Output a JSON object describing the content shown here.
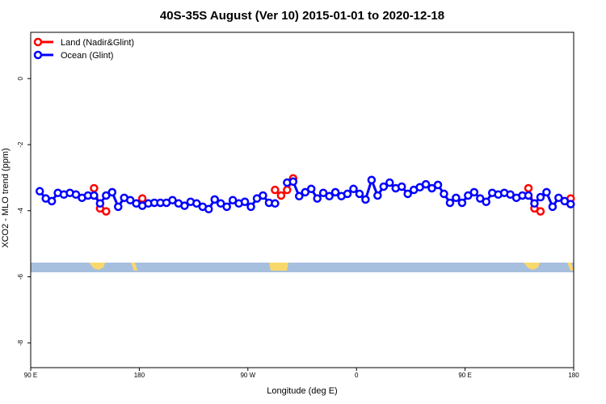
{
  "chart_data": {
    "type": "line",
    "title": "40S-35S August (Ver 10)   2015-01-01 to 2020-12-18",
    "xlabel": "Longitude (deg E)",
    "ylabel": "XCO2 - MLO trend (ppm)",
    "xlim": [
      90,
      540
    ],
    "ylim": [
      -8.75,
      1.4
    ],
    "xticks": [
      {
        "value": 90,
        "label": "90 E"
      },
      {
        "value": 180,
        "label": "180"
      },
      {
        "value": 270,
        "label": "90 W"
      },
      {
        "value": 360,
        "label": "0"
      },
      {
        "value": 450,
        "label": "90 E"
      },
      {
        "value": 540,
        "label": "180"
      }
    ],
    "yticks": [
      0,
      -2,
      -4,
      -6,
      -8
    ],
    "legend": "top-left",
    "x": [
      97.5,
      102.5,
      107.5,
      112.5,
      117.5,
      122.5,
      127.5,
      132.5,
      137.5,
      142.5,
      147.5,
      152.5,
      157.5,
      162.5,
      167.5,
      172.5,
      177.5,
      182.5,
      187.5,
      192.5,
      197.5,
      202.5,
      207.5,
      212.5,
      217.5,
      222.5,
      227.5,
      232.5,
      237.5,
      242.5,
      247.5,
      252.5,
      257.5,
      262.5,
      267.5,
      272.5,
      277.5,
      282.5,
      287.5,
      292.5,
      297.5,
      302.5,
      307.5,
      312.5,
      317.5,
      322.5,
      327.5,
      332.5,
      337.5,
      342.5,
      347.5,
      352.5,
      357.5,
      362.5,
      367.5,
      372.5,
      377.5,
      382.5,
      387.5,
      392.5,
      397.5,
      402.5,
      407.5,
      412.5,
      417.5,
      422.5,
      427.5,
      432.5,
      437.5,
      442.5,
      447.5,
      452.5,
      457.5,
      462.5,
      467.5,
      472.5,
      477.5,
      482.5,
      487.5,
      492.5,
      497.5,
      502.5,
      507.5,
      512.5,
      517.5,
      522.5,
      527.5,
      532.5,
      537.5
    ],
    "series": [
      {
        "name": "Land (Nadir&Glint)",
        "color": "#ff0000",
        "values": [
          null,
          null,
          null,
          null,
          null,
          null,
          null,
          null,
          null,
          -3.32,
          -3.93,
          -4.02,
          null,
          null,
          null,
          null,
          null,
          -3.63,
          null,
          null,
          null,
          null,
          null,
          null,
          null,
          null,
          null,
          null,
          null,
          null,
          null,
          null,
          null,
          null,
          null,
          null,
          null,
          null,
          null,
          -3.37,
          -3.54,
          -3.37,
          -3.02,
          null,
          null,
          null,
          null,
          null,
          null,
          null,
          null,
          null,
          null,
          null,
          null,
          null,
          null,
          null,
          null,
          null,
          null,
          null,
          null,
          null,
          null,
          null,
          null,
          null,
          null,
          null,
          null,
          null,
          null,
          null,
          null,
          null,
          null,
          null,
          null,
          null,
          null,
          -3.32,
          -3.93,
          -4.02,
          null,
          null,
          null,
          null,
          -3.63
        ]
      },
      {
        "name": "Ocean (Glint)",
        "color": "#0000ff",
        "values": [
          -3.41,
          -3.63,
          -3.71,
          -3.46,
          -3.51,
          -3.46,
          -3.51,
          -3.61,
          -3.54,
          -3.54,
          -3.78,
          -3.54,
          -3.44,
          -3.88,
          -3.61,
          -3.68,
          -3.78,
          -3.85,
          -3.78,
          -3.76,
          -3.76,
          -3.76,
          -3.68,
          -3.78,
          -3.85,
          -3.73,
          -3.78,
          -3.88,
          -3.95,
          -3.66,
          -3.78,
          -3.88,
          -3.68,
          -3.78,
          -3.73,
          -3.88,
          -3.63,
          -3.54,
          -3.76,
          -3.78,
          null,
          -3.15,
          -3.12,
          -3.56,
          -3.44,
          -3.34,
          -3.63,
          -3.46,
          -3.56,
          -3.44,
          -3.56,
          -3.49,
          -3.34,
          -3.49,
          -3.66,
          -3.07,
          -3.54,
          -3.27,
          -3.15,
          -3.32,
          -3.27,
          -3.49,
          -3.37,
          -3.29,
          -3.2,
          -3.32,
          -3.22,
          -3.49,
          -3.76,
          -3.61,
          -3.76,
          -3.54,
          -3.44,
          -3.63,
          -3.73,
          -3.46,
          -3.51,
          -3.46,
          -3.51,
          -3.61,
          -3.54,
          -3.54,
          -3.78,
          -3.59,
          -3.44,
          -3.88,
          -3.61,
          -3.71,
          -3.8
        ]
      }
    ]
  }
}
